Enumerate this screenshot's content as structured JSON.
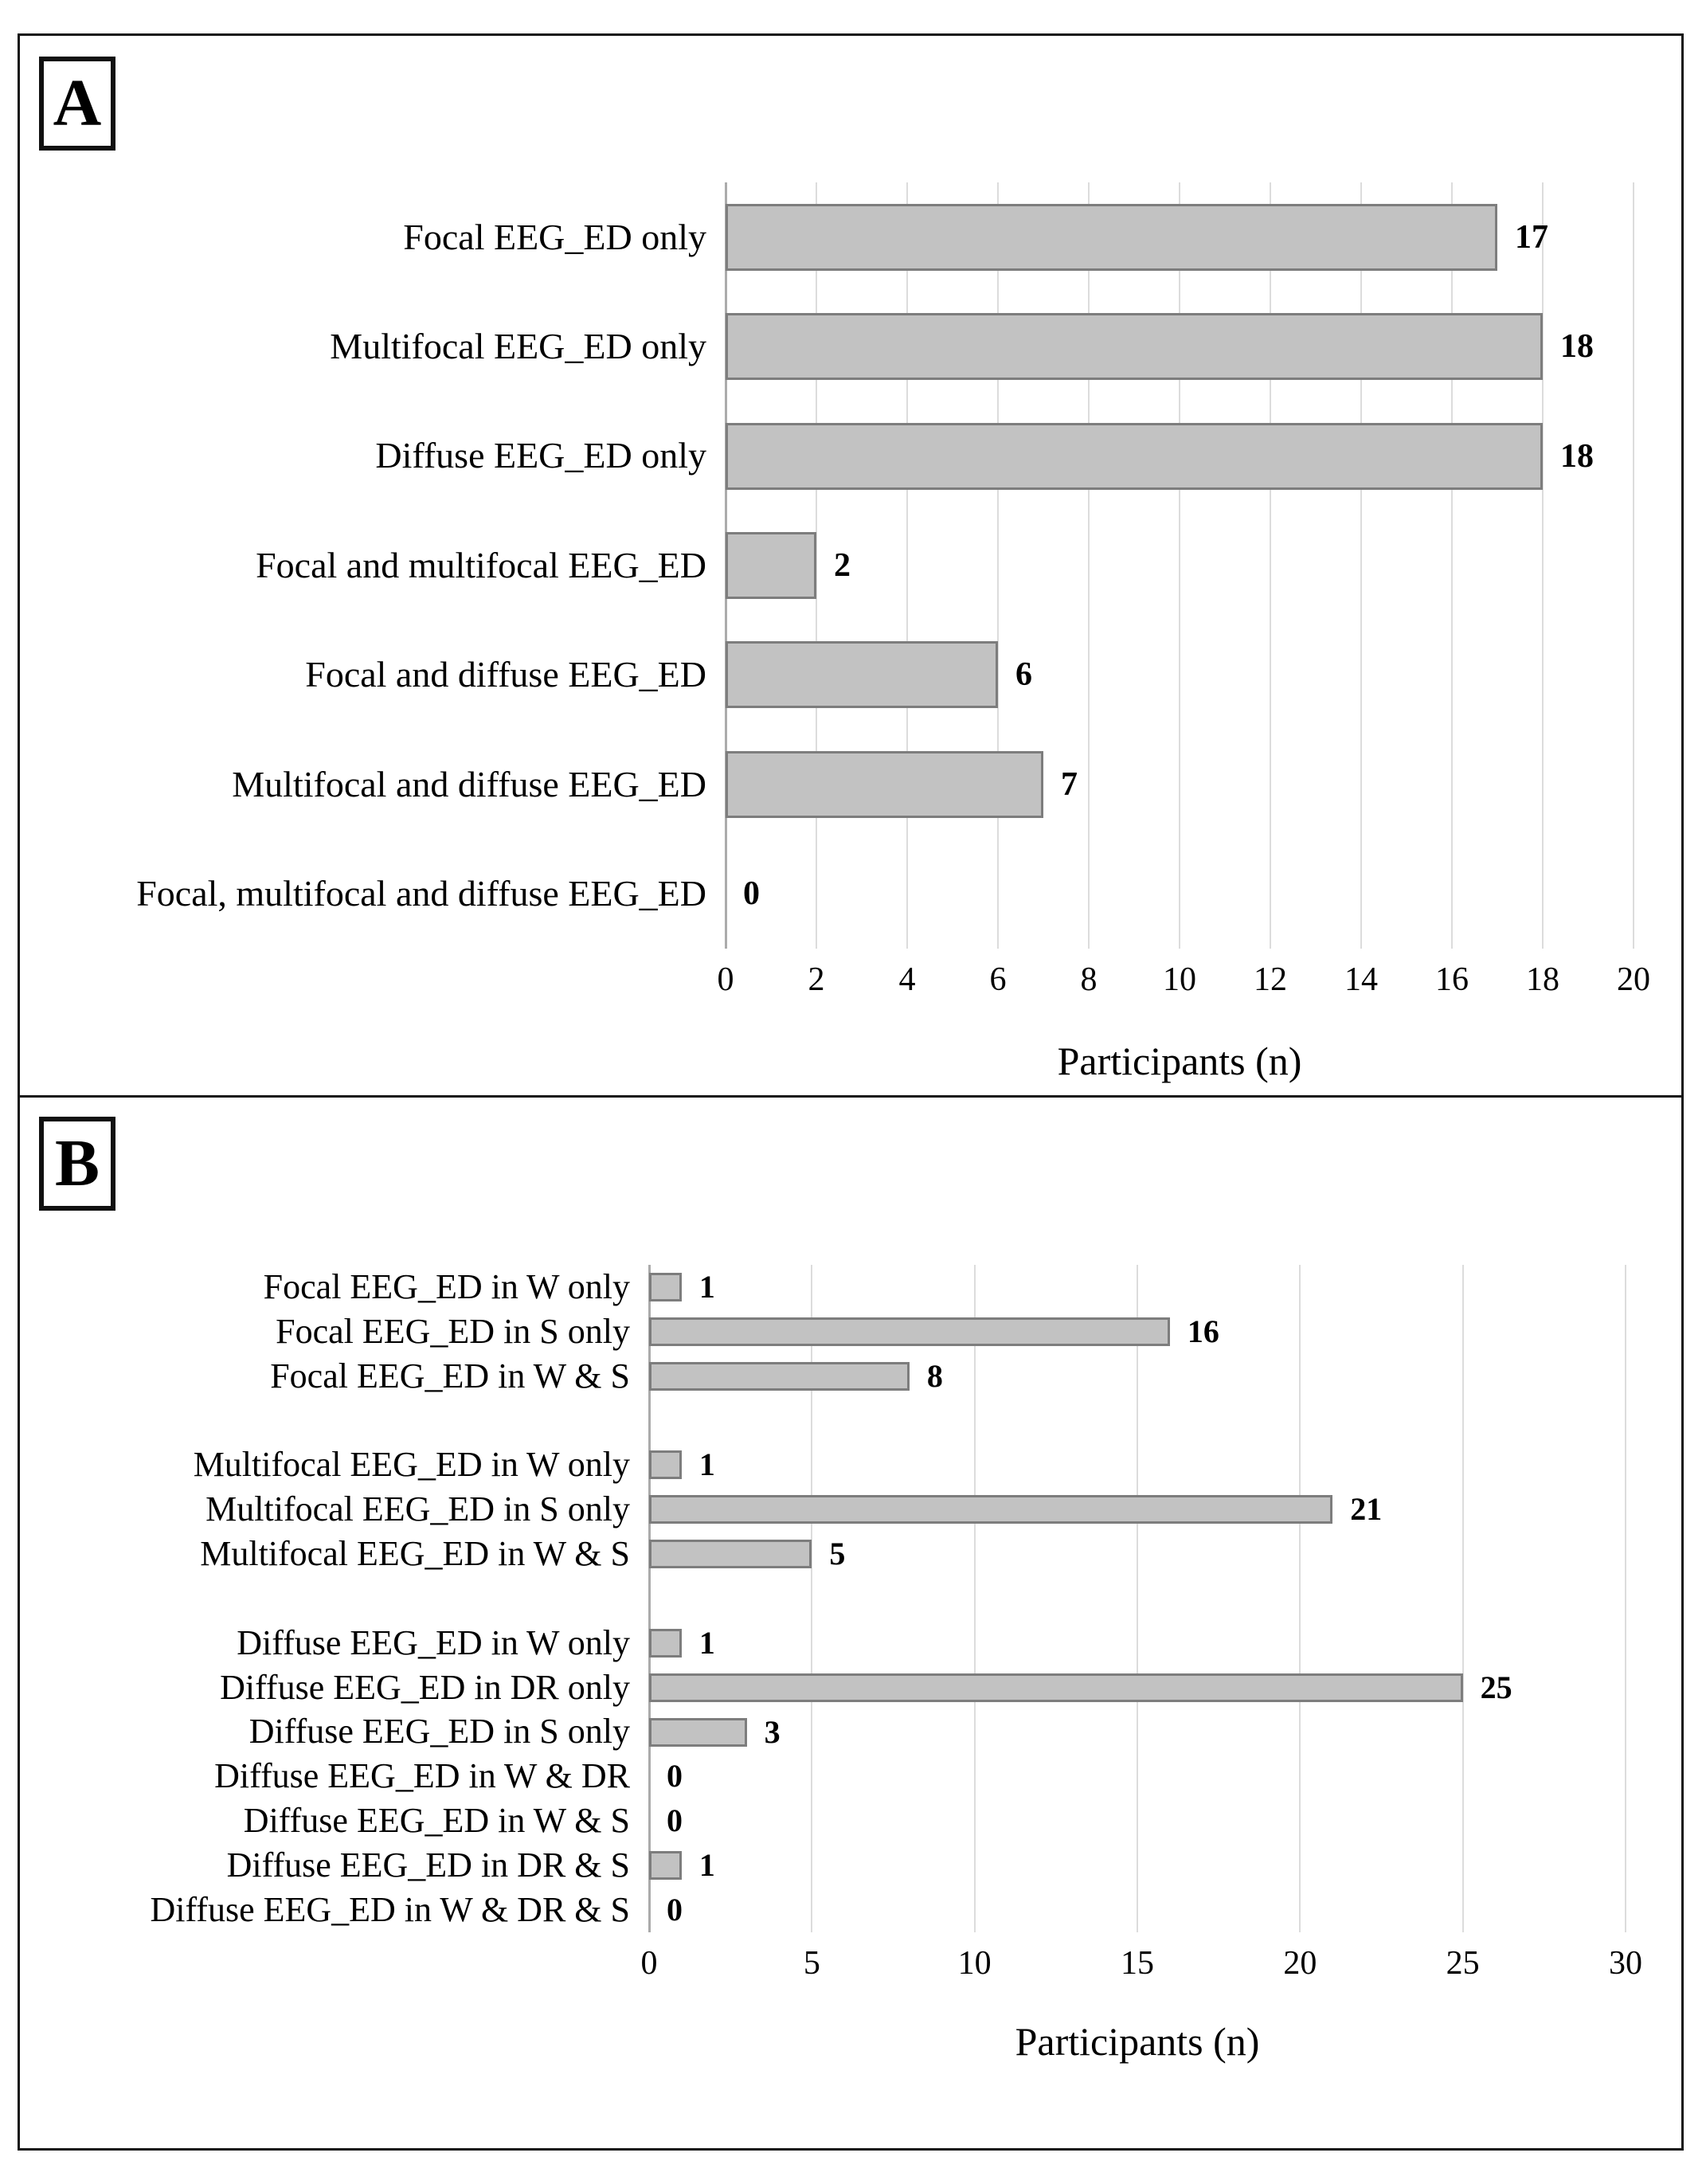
{
  "figure": {
    "panel_tags": [
      "A",
      "B"
    ]
  },
  "colors": {
    "bar_fill": "#c2c2c2",
    "bar_border": "#7d7d7d",
    "gridline": "#dcdcdc",
    "axis_line": "#ababab",
    "frame": "#141414"
  },
  "chart_data": [
    {
      "type": "bar",
      "orientation": "horizontal",
      "panel": "A",
      "categories": [
        "Focal EEG_ED only",
        "Multifocal EEG_ED only",
        "Diffuse EEG_ED only",
        "Focal and multifocal EEG_ED",
        "Focal and diffuse EEG_ED",
        "Multifocal and diffuse EEG_ED",
        "Focal, multifocal and diffuse EEG_ED"
      ],
      "values": [
        17,
        18,
        18,
        2,
        6,
        7,
        0
      ],
      "xlabel": "Participants (n)",
      "xlim": [
        0,
        20
      ],
      "xticks": [
        0,
        2,
        4,
        6,
        8,
        10,
        12,
        14,
        16,
        18,
        20
      ],
      "grid": "vertical",
      "legend": "none",
      "gap_after": []
    },
    {
      "type": "bar",
      "orientation": "horizontal",
      "panel": "B",
      "categories": [
        "Focal EEG_ED in W only",
        "Focal EEG_ED in S only",
        "Focal EEG_ED in W & S",
        "Multifocal EEG_ED in W only",
        "Multifocal EEG_ED in S only",
        "Multifocal EEG_ED in W & S",
        "Diffuse EEG_ED in W only",
        "Diffuse EEG_ED in DR only",
        "Diffuse EEG_ED in S only",
        "Diffuse EEG_ED in W & DR",
        "Diffuse EEG_ED in W & S",
        "Diffuse EEG_ED in DR & S",
        "Diffuse EEG_ED in W & DR & S"
      ],
      "values": [
        1,
        16,
        8,
        1,
        21,
        5,
        1,
        25,
        3,
        0,
        0,
        1,
        0
      ],
      "xlabel": "Participants (n)",
      "xlim": [
        0,
        30
      ],
      "xticks": [
        0,
        5,
        10,
        15,
        20,
        25,
        30
      ],
      "grid": "vertical",
      "legend": "none",
      "gap_after": [
        2,
        5
      ]
    }
  ]
}
